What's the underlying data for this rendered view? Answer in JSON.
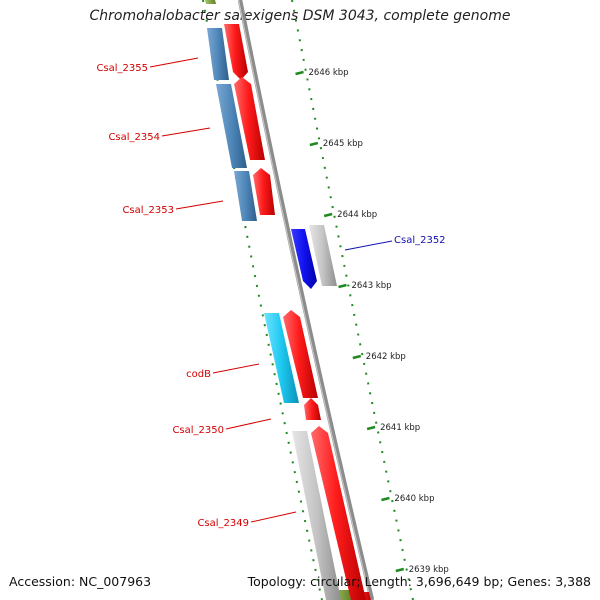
{
  "header": {
    "title": "Chromohalobacter salexigens DSM 3043, complete genome"
  },
  "footer": {
    "accession": "Accession: NC_007963",
    "summary": "Topology: circular; Length: 3,696,649 bp; Genes: 3,388"
  },
  "colors": {
    "forward_cds": "#e8141c",
    "reverse_cds": "#4f87b9",
    "selected_gene": "#1818ee",
    "other_feature": "#bdbdbd",
    "codB": "#1ec8f0",
    "backbone": "#8c8c8c",
    "ticks": "#1f8a1f",
    "label_red": "#d40000",
    "label_blue": "#1010b0"
  },
  "ruler": {
    "unit": "kbp",
    "ticks": [
      {
        "kbp": 2646,
        "label": "2646 kbp"
      },
      {
        "kbp": 2645,
        "label": "2645 kbp"
      },
      {
        "kbp": 2644,
        "label": "2644 kbp"
      },
      {
        "kbp": 2643,
        "label": "2643 kbp"
      },
      {
        "kbp": 2642,
        "label": "2642 kbp"
      },
      {
        "kbp": 2641,
        "label": "2641 kbp"
      },
      {
        "kbp": 2640,
        "label": "2640 kbp"
      },
      {
        "kbp": 2639,
        "label": "2639 kbp"
      }
    ]
  },
  "genes": [
    {
      "name": "Csal_2355",
      "strand": "reverse",
      "color": "#4f87b9",
      "label_color": "#d40000"
    },
    {
      "name": "Csal_2354",
      "strand": "reverse",
      "color": "#4f87b9",
      "label_color": "#d40000"
    },
    {
      "name": "Csal_2353",
      "strand": "reverse",
      "color": "#4f87b9",
      "label_color": "#d40000"
    },
    {
      "name": "Csal_2352",
      "strand": "reverse",
      "color": "#1818ee",
      "label_color": "#1010b0"
    },
    {
      "name": "codB",
      "strand": "reverse",
      "color": "#1ec8f0",
      "label_color": "#d40000"
    },
    {
      "name": "Csal_2350",
      "strand": "forward",
      "color": "#e8141c",
      "label_color": "#d40000"
    },
    {
      "name": "Csal_2349",
      "strand": "reverse",
      "color": "#bdbdbd",
      "label_color": "#d40000"
    }
  ]
}
